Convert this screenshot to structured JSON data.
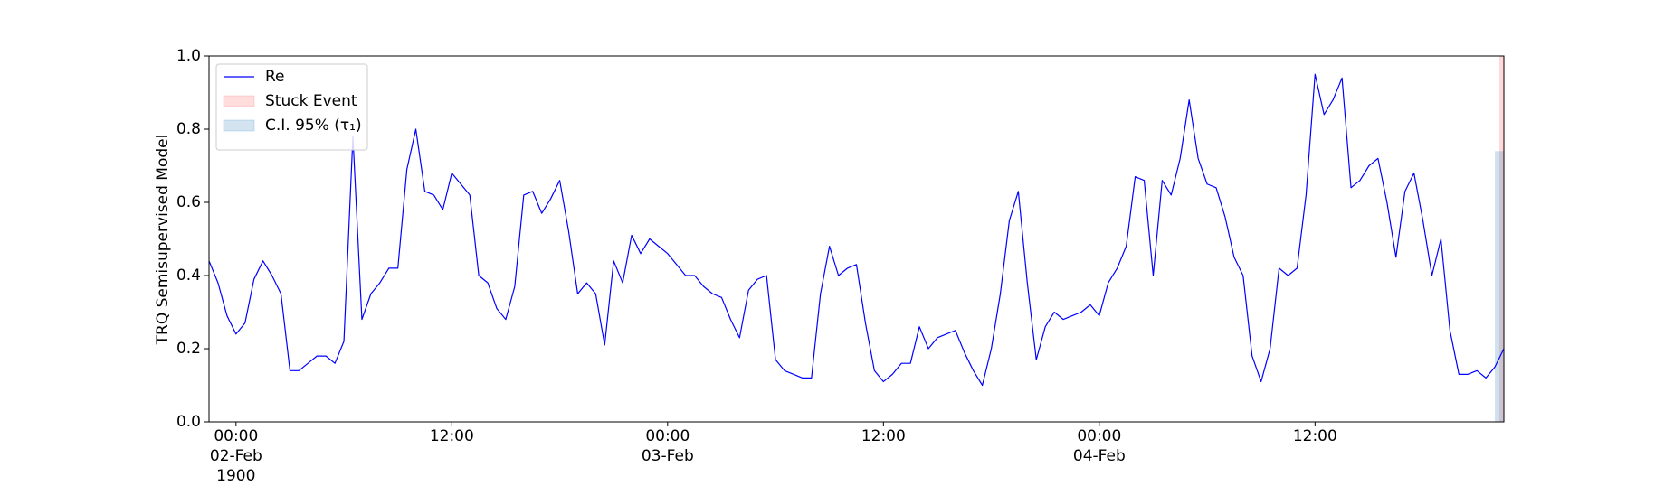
{
  "chart_data": {
    "type": "line",
    "y_label": "TRQ Semisupervised Model",
    "x": [
      "1900-02-01 22:30",
      "1900-02-01 23:00",
      "1900-02-01 23:30",
      "1900-02-02 00:00",
      "1900-02-02 00:30",
      "1900-02-02 01:00",
      "1900-02-02 01:30",
      "1900-02-02 02:00",
      "1900-02-02 02:30",
      "1900-02-02 03:00",
      "1900-02-02 03:30",
      "1900-02-02 04:00",
      "1900-02-02 04:30",
      "1900-02-02 05:00",
      "1900-02-02 05:30",
      "1900-02-02 06:00",
      "1900-02-02 06:30",
      "1900-02-02 07:00",
      "1900-02-02 07:30",
      "1900-02-02 08:00",
      "1900-02-02 08:30",
      "1900-02-02 09:00",
      "1900-02-02 09:30",
      "1900-02-02 10:00",
      "1900-02-02 10:30",
      "1900-02-02 11:00",
      "1900-02-02 11:30",
      "1900-02-02 12:00",
      "1900-02-02 12:30",
      "1900-02-02 13:00",
      "1900-02-02 13:30",
      "1900-02-02 14:00",
      "1900-02-02 14:30",
      "1900-02-02 15:00",
      "1900-02-02 15:30",
      "1900-02-02 16:00",
      "1900-02-02 16:30",
      "1900-02-02 17:00",
      "1900-02-02 17:30",
      "1900-02-02 18:00",
      "1900-02-02 18:30",
      "1900-02-02 19:00",
      "1900-02-02 19:30",
      "1900-02-02 20:00",
      "1900-02-02 20:30",
      "1900-02-02 21:00",
      "1900-02-02 21:30",
      "1900-02-02 22:00",
      "1900-02-02 22:30",
      "1900-02-02 23:00",
      "1900-02-02 23:30",
      "1900-02-03 00:00",
      "1900-02-03 00:30",
      "1900-02-03 01:00",
      "1900-02-03 01:30",
      "1900-02-03 02:00",
      "1900-02-03 02:30",
      "1900-02-03 03:00",
      "1900-02-03 03:30",
      "1900-02-03 04:00",
      "1900-02-03 04:30",
      "1900-02-03 05:00",
      "1900-02-03 05:30",
      "1900-02-03 06:00",
      "1900-02-03 06:30",
      "1900-02-03 07:00",
      "1900-02-03 07:30",
      "1900-02-03 08:00",
      "1900-02-03 08:30",
      "1900-02-03 09:00",
      "1900-02-03 09:30",
      "1900-02-03 10:00",
      "1900-02-03 10:30",
      "1900-02-03 11:00",
      "1900-02-03 11:30",
      "1900-02-03 12:00",
      "1900-02-03 12:30",
      "1900-02-03 13:00",
      "1900-02-03 13:30",
      "1900-02-03 14:00",
      "1900-02-03 14:30",
      "1900-02-03 15:00",
      "1900-02-03 15:30",
      "1900-02-03 16:00",
      "1900-02-03 16:30",
      "1900-02-03 17:00",
      "1900-02-03 17:30",
      "1900-02-03 18:00",
      "1900-02-03 18:30",
      "1900-02-03 19:00",
      "1900-02-03 19:30",
      "1900-02-03 20:00",
      "1900-02-03 20:30",
      "1900-02-03 21:00",
      "1900-02-03 21:30",
      "1900-02-03 22:00",
      "1900-02-03 22:30",
      "1900-02-03 23:00",
      "1900-02-03 23:30",
      "1900-02-04 00:00",
      "1900-02-04 00:30",
      "1900-02-04 01:00",
      "1900-02-04 01:30",
      "1900-02-04 02:00",
      "1900-02-04 02:30",
      "1900-02-04 03:00",
      "1900-02-04 03:30",
      "1900-02-04 04:00",
      "1900-02-04 04:30",
      "1900-02-04 05:00",
      "1900-02-04 05:30",
      "1900-02-04 06:00",
      "1900-02-04 06:30",
      "1900-02-04 07:00",
      "1900-02-04 07:30",
      "1900-02-04 08:00",
      "1900-02-04 08:30",
      "1900-02-04 09:00",
      "1900-02-04 09:30",
      "1900-02-04 10:00",
      "1900-02-04 10:30",
      "1900-02-04 11:00",
      "1900-02-04 11:30",
      "1900-02-04 12:00",
      "1900-02-04 12:30",
      "1900-02-04 13:00",
      "1900-02-04 13:30",
      "1900-02-04 14:00",
      "1900-02-04 14:30",
      "1900-02-04 15:00",
      "1900-02-04 15:30",
      "1900-02-04 16:00",
      "1900-02-04 16:30",
      "1900-02-04 17:00",
      "1900-02-04 17:30",
      "1900-02-04 18:00",
      "1900-02-04 18:30",
      "1900-02-04 19:00",
      "1900-02-04 19:30",
      "1900-02-04 20:00",
      "1900-02-04 20:30",
      "1900-02-04 21:00",
      "1900-02-04 21:30",
      "1900-02-04 22:00",
      "1900-02-04 22:30"
    ],
    "series": [
      {
        "name": "Re",
        "color": "#0000ff",
        "values": [
          0.44,
          0.38,
          0.29,
          0.24,
          0.27,
          0.39,
          0.44,
          0.4,
          0.35,
          0.14,
          0.14,
          0.16,
          0.18,
          0.18,
          0.16,
          0.22,
          0.78,
          0.28,
          0.35,
          0.38,
          0.42,
          0.42,
          0.69,
          0.8,
          0.63,
          0.62,
          0.58,
          0.68,
          0.65,
          0.62,
          0.4,
          0.38,
          0.31,
          0.28,
          0.37,
          0.62,
          0.63,
          0.57,
          0.61,
          0.66,
          0.52,
          0.35,
          0.38,
          0.35,
          0.21,
          0.44,
          0.38,
          0.51,
          0.46,
          0.5,
          0.48,
          0.46,
          0.43,
          0.4,
          0.4,
          0.37,
          0.35,
          0.34,
          0.28,
          0.23,
          0.36,
          0.39,
          0.4,
          0.17,
          0.14,
          0.13,
          0.12,
          0.12,
          0.35,
          0.48,
          0.4,
          0.42,
          0.43,
          0.27,
          0.14,
          0.11,
          0.13,
          0.16,
          0.16,
          0.26,
          0.2,
          0.23,
          0.24,
          0.25,
          0.19,
          0.14,
          0.1,
          0.2,
          0.35,
          0.55,
          0.63,
          0.38,
          0.17,
          0.26,
          0.3,
          0.28,
          0.29,
          0.3,
          0.32,
          0.29,
          0.38,
          0.42,
          0.48,
          0.67,
          0.66,
          0.4,
          0.66,
          0.62,
          0.72,
          0.88,
          0.72,
          0.65,
          0.64,
          0.56,
          0.45,
          0.4,
          0.18,
          0.11,
          0.2,
          0.42,
          0.4,
          0.42,
          0.62,
          0.95,
          0.84,
          0.88,
          0.94,
          0.64,
          0.66,
          0.7,
          0.72,
          0.6,
          0.45,
          0.63,
          0.68,
          0.55,
          0.4,
          0.5,
          0.25,
          0.13,
          0.13,
          0.14,
          0.12,
          0.15,
          0.2
        ]
      }
    ],
    "bands": [
      {
        "name": "Stuck Event",
        "color": "#ff0000",
        "opacity": 0.15,
        "x": [
          "1900-02-04 22:15",
          "1900-02-04 22:30"
        ]
      },
      {
        "name": "C.I. 95% (τ₁)",
        "color": "#1f77b4",
        "opacity": 0.22,
        "x": [
          "1900-02-04 22:00",
          "1900-02-04 22:30"
        ],
        "y": [
          0,
          0.74
        ]
      }
    ],
    "xlim": [
      "1900-02-01 22:30",
      "1900-02-04 22:30"
    ],
    "xticks": [
      {
        "value": "1900-02-02 00:00",
        "label": "00:00\n02-Feb\n1900"
      },
      {
        "value": "1900-02-02 12:00",
        "label": "12:00"
      },
      {
        "value": "1900-02-03 00:00",
        "label": "00:00\n03-Feb"
      },
      {
        "value": "1900-02-03 12:00",
        "label": "12:00"
      },
      {
        "value": "1900-02-04 00:00",
        "label": "00:00\n04-Feb"
      },
      {
        "value": "1900-02-04 12:00",
        "label": "12:00"
      }
    ],
    "ylim": [
      0,
      1
    ],
    "yticks": [
      {
        "value": 0,
        "label": "0.0"
      },
      0.2,
      0.4,
      0.6,
      0.8,
      {
        "value": 1,
        "label": "1.0"
      }
    ],
    "legend": "upper-left"
  }
}
